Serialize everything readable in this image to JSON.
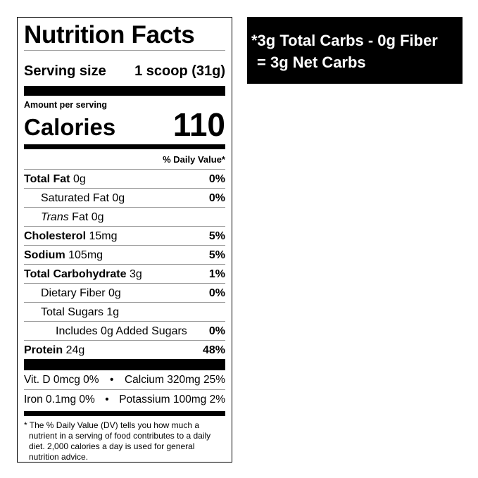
{
  "label": {
    "title": "Nutrition Facts",
    "serving_label": "Serving size",
    "serving_value": "1 scoop (31g)",
    "amount_per_serving": "Amount per serving",
    "calories_label": "Calories",
    "calories_value": "110",
    "daily_value_header": "% Daily Value*",
    "rows": [
      {
        "name": "Total Fat",
        "amount": "0g",
        "pct": "0%"
      },
      {
        "name": "Saturated Fat",
        "amount": "0g",
        "pct": "0%"
      },
      {
        "name": "Trans",
        "name2": "Fat",
        "amount": "0g",
        "pct": ""
      },
      {
        "name": "Cholesterol",
        "amount": "15mg",
        "pct": "5%"
      },
      {
        "name": "Sodium",
        "amount": "105mg",
        "pct": "5%"
      },
      {
        "name": "Total Carbohydrate",
        "amount": "3g",
        "pct": "1%"
      },
      {
        "name": "Dietary Fiber",
        "amount": "0g",
        "pct": "0%"
      },
      {
        "name": "Total Sugars",
        "amount": "1g",
        "pct": ""
      },
      {
        "name": "Includes 0g Added Sugars",
        "amount": "",
        "pct": "0%"
      },
      {
        "name": "Protein",
        "amount": "24g",
        "pct": "48%"
      }
    ],
    "minerals": [
      {
        "left": "Vit. D 0mcg 0%",
        "right": "Calcium 320mg 25%"
      },
      {
        "left": "Iron 0.1mg 0%",
        "right": "Potassium 100mg 2%"
      }
    ],
    "bullet": "•",
    "footnote": "* The % Daily Value (DV) tells you how much a nutrient in a serving of food contributes to a daily diet. 2,000 calories a day is used for general nutrition advice."
  },
  "net_carbs": {
    "line1": "*3g Total Carbs - 0g Fiber",
    "line2": "= 3g Net Carbs"
  }
}
